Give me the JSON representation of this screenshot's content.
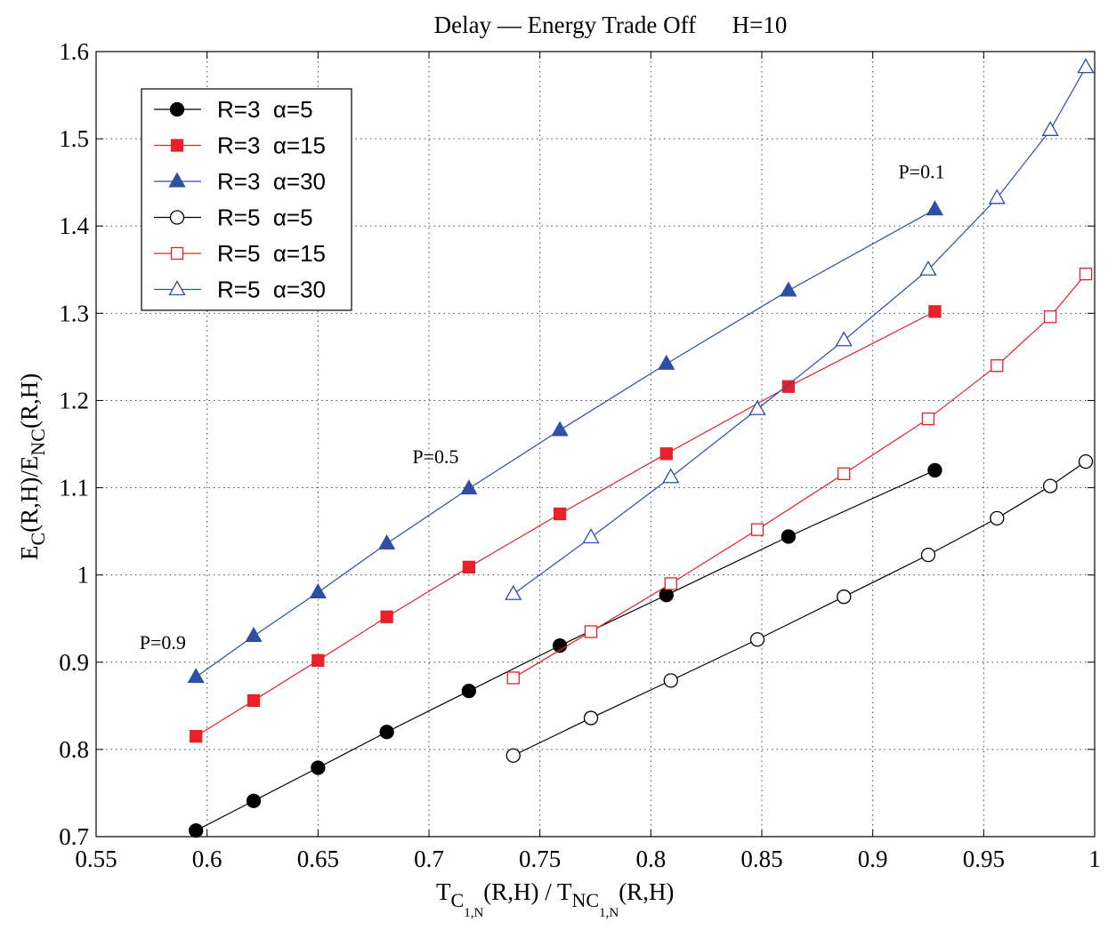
{
  "chart_data": {
    "type": "line",
    "title": "Delay — Energy Trade Off      H=10",
    "xlabel": {
      "parts": [
        {
          "t": "T",
          "sub": false
        },
        {
          "t": "C",
          "sub": 1
        },
        {
          "t": "1,N",
          "sub": 2
        },
        {
          "t": "(R,H) / T",
          "sub": false
        },
        {
          "t": "NC",
          "sub": 1
        },
        {
          "t": "1,N",
          "sub": 2
        },
        {
          "t": "(R,H)",
          "sub": false
        }
      ]
    },
    "ylabel": {
      "parts": [
        {
          "t": "E",
          "sub": false
        },
        {
          "t": "C",
          "sub": 1
        },
        {
          "t": "(R,H)/E",
          "sub": false
        },
        {
          "t": "NC",
          "sub": 1
        },
        {
          "t": "(R,H)",
          "sub": false
        }
      ]
    },
    "xlim": [
      0.55,
      1.0
    ],
    "ylim": [
      0.7,
      1.6
    ],
    "xticks": [
      0.55,
      0.6,
      0.65,
      0.7,
      0.75,
      0.8,
      0.85,
      0.9,
      0.95,
      1
    ],
    "xtick_labels": [
      "0.55",
      "0.6",
      "0.65",
      "0.7",
      "0.75",
      "0.8",
      "0.85",
      "0.9",
      "0.95",
      "1"
    ],
    "yticks": [
      0.7,
      0.8,
      0.9,
      1.0,
      1.1,
      1.2,
      1.3,
      1.4,
      1.5,
      1.6
    ],
    "ytick_labels": [
      "0.7",
      "0.8",
      "0.9",
      "1",
      "1.1",
      "1.2",
      "1.3",
      "1.4",
      "1.5",
      "1.6"
    ],
    "grid": "dotted",
    "legend_position": "top-left",
    "series": [
      {
        "name": "R=3  α=5",
        "color": "#000000",
        "marker": "circle",
        "filled": true,
        "x": [
          0.595,
          0.621,
          0.65,
          0.681,
          0.718,
          0.759,
          0.807,
          0.862,
          0.928
        ],
        "y": [
          0.707,
          0.741,
          0.779,
          0.82,
          0.867,
          0.919,
          0.977,
          1.044,
          1.12
        ]
      },
      {
        "name": "R=3  α=15",
        "color": "#e8202a",
        "marker": "square",
        "filled": true,
        "x": [
          0.595,
          0.621,
          0.65,
          0.681,
          0.718,
          0.759,
          0.807,
          0.862,
          0.928
        ],
        "y": [
          0.815,
          0.856,
          0.902,
          0.952,
          1.009,
          1.07,
          1.139,
          1.216,
          1.302
        ]
      },
      {
        "name": "R=3  α=30",
        "color": "#2e4fa5",
        "marker": "triangle",
        "filled": true,
        "x": [
          0.595,
          0.621,
          0.65,
          0.681,
          0.718,
          0.759,
          0.807,
          0.862,
          0.928
        ],
        "y": [
          0.883,
          0.93,
          0.98,
          1.036,
          1.099,
          1.166,
          1.242,
          1.326,
          1.419
        ]
      },
      {
        "name": "R=5  α=5",
        "color": "#000000",
        "marker": "circle",
        "filled": false,
        "x": [
          0.738,
          0.773,
          0.809,
          0.848,
          0.887,
          0.925,
          0.956,
          0.98,
          0.996
        ],
        "y": [
          0.793,
          0.836,
          0.879,
          0.926,
          0.975,
          1.023,
          1.065,
          1.102,
          1.13
        ]
      },
      {
        "name": "R=5  α=15",
        "color": "#e8202a",
        "marker": "square",
        "filled": false,
        "x": [
          0.738,
          0.773,
          0.809,
          0.848,
          0.887,
          0.925,
          0.956,
          0.98,
          0.996
        ],
        "y": [
          0.882,
          0.935,
          0.99,
          1.052,
          1.116,
          1.179,
          1.24,
          1.296,
          1.345
        ]
      },
      {
        "name": "R=5  α=30",
        "color": "#2e4fa5",
        "marker": "triangle",
        "filled": false,
        "x": [
          0.738,
          0.773,
          0.809,
          0.848,
          0.887,
          0.925,
          0.956,
          0.98,
          0.996
        ],
        "y": [
          0.978,
          1.043,
          1.112,
          1.19,
          1.269,
          1.35,
          1.432,
          1.51,
          1.582
        ]
      }
    ],
    "annotations": [
      {
        "text": "P=0.9",
        "x": 0.58,
        "y": 0.915
      },
      {
        "text": "P=0.5",
        "x": 0.703,
        "y": 1.128
      },
      {
        "text": "P=0.1",
        "x": 0.922,
        "y": 1.455
      }
    ]
  }
}
